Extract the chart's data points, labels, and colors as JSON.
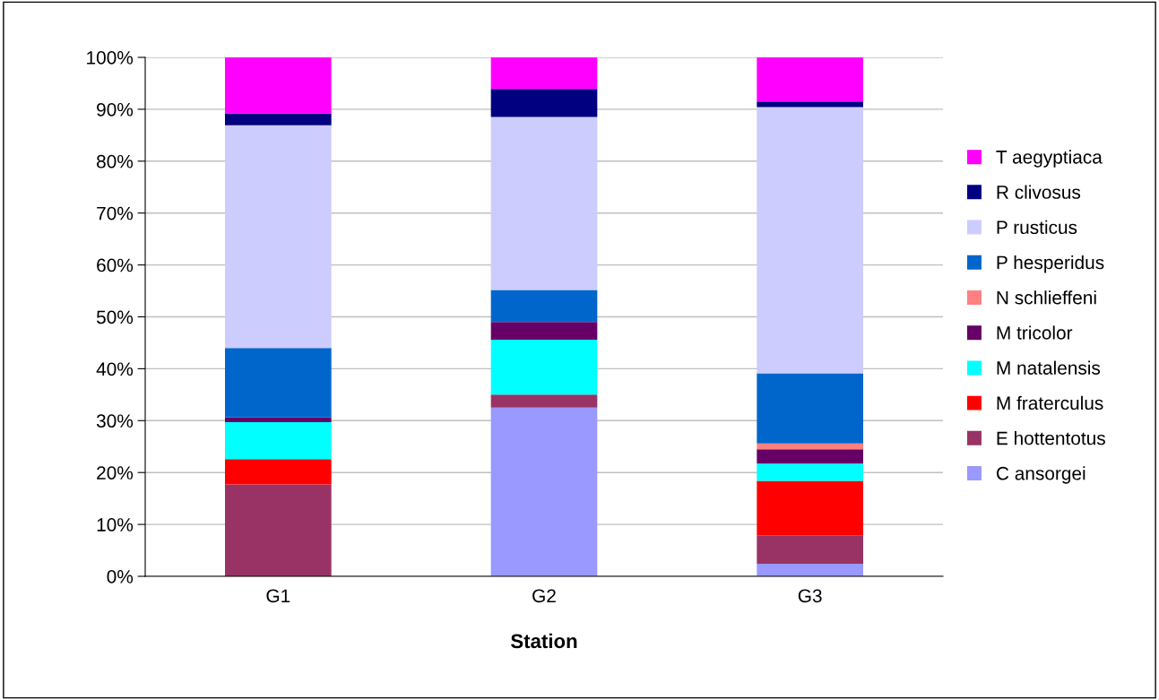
{
  "chart_data": {
    "type": "bar",
    "stacked": true,
    "xlabel": "Station",
    "categories": [
      "G1",
      "G2",
      "G3"
    ],
    "series": [
      {
        "name": "C ansorgei",
        "color": "#9999ff",
        "values": [
          0,
          32.5,
          2.4
        ]
      },
      {
        "name": "E hottentotus",
        "color": "#993366",
        "values": [
          17.7,
          2.5,
          5.5
        ]
      },
      {
        "name": "M fraterculus",
        "color": "#ff0000",
        "values": [
          4.9,
          0,
          10.5
        ]
      },
      {
        "name": "M natalensis",
        "color": "#00ffff",
        "values": [
          7.1,
          10.6,
          3.3
        ]
      },
      {
        "name": "M tricolor",
        "color": "#660066",
        "values": [
          0.9,
          3.4,
          2.8
        ]
      },
      {
        "name": "N schlieffeni",
        "color": "#ff8080",
        "values": [
          0,
          0,
          1.1
        ]
      },
      {
        "name": "P hesperidus",
        "color": "#0066cc",
        "values": [
          13.4,
          6.2,
          13.5
        ]
      },
      {
        "name": "P rusticus",
        "color": "#ccccff",
        "values": [
          42.9,
          33.3,
          51.3
        ]
      },
      {
        "name": "R clivosus",
        "color": "#000080",
        "values": [
          2.3,
          5.4,
          1.1
        ]
      },
      {
        "name": "T aegyptiaca",
        "color": "#ff00ff",
        "values": [
          10.8,
          6.1,
          8.5
        ]
      }
    ],
    "ylim": [
      0,
      100
    ],
    "yticks": [
      {
        "value": 0,
        "label": "0%"
      },
      {
        "value": 10,
        "label": "10%"
      },
      {
        "value": 20,
        "label": "20%"
      },
      {
        "value": 30,
        "label": "30%"
      },
      {
        "value": 40,
        "label": "40%"
      },
      {
        "value": 50,
        "label": "50%"
      },
      {
        "value": 60,
        "label": "60%"
      },
      {
        "value": 70,
        "label": "70%"
      },
      {
        "value": 80,
        "label": "80%"
      },
      {
        "value": 90,
        "label": "90%"
      },
      {
        "value": 100,
        "label": "100%"
      }
    ],
    "grid": "y",
    "legend": "right"
  }
}
